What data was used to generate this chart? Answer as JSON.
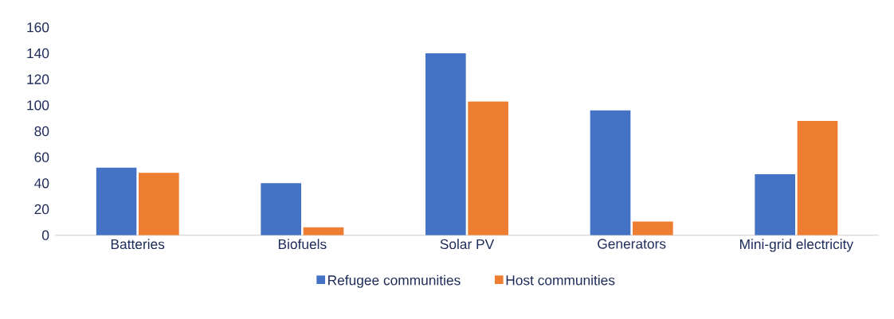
{
  "chart_data": {
    "type": "bar",
    "categories": [
      "Batteries",
      "Biofuels",
      "Solar PV",
      "Generators",
      "Mini-grid electricity"
    ],
    "series": [
      {
        "name": "Refugee communities",
        "color": "#4472c4",
        "values": [
          52,
          40,
          140,
          96,
          47
        ]
      },
      {
        "name": "Host communities",
        "color": "#ed7d31",
        "values": [
          48,
          6,
          103,
          10.5,
          88
        ]
      }
    ],
    "ylim": [
      0,
      160
    ],
    "yticks": [
      0,
      20,
      40,
      60,
      80,
      100,
      120,
      140,
      160
    ],
    "legend": "bottom"
  }
}
